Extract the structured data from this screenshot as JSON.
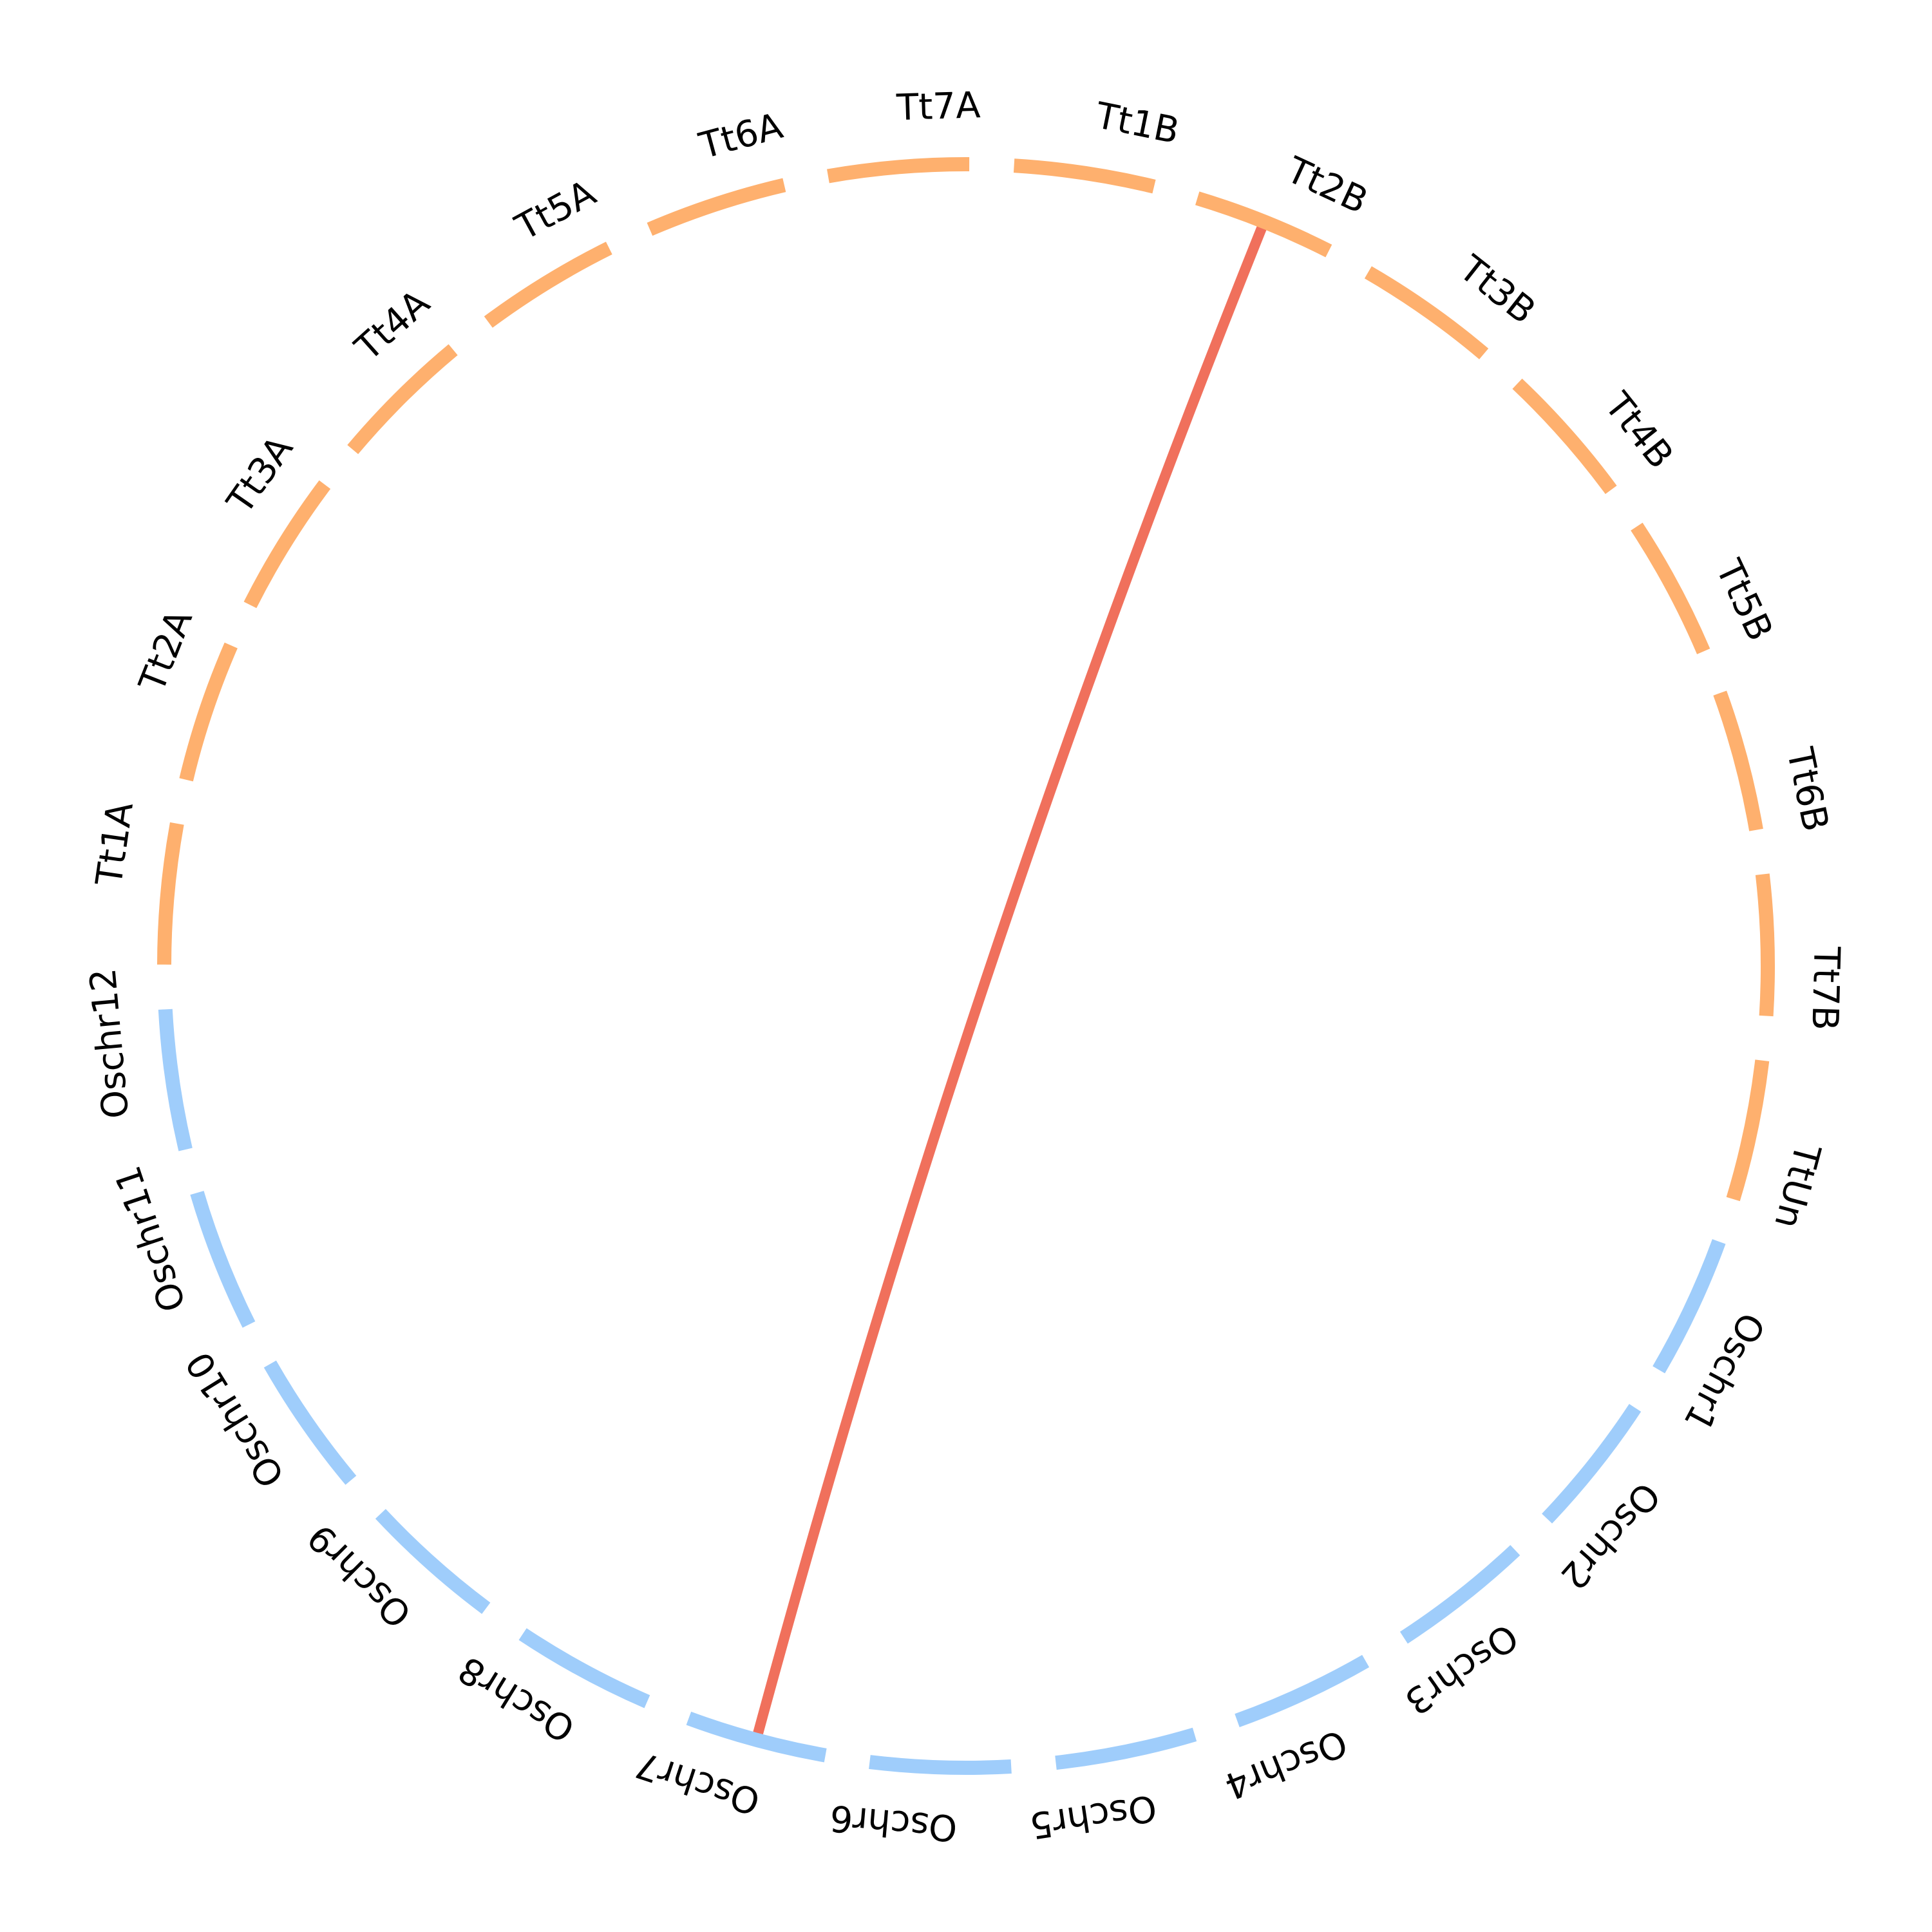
{
  "chart_data": {
    "type": "circos",
    "colors": {
      "Os": "#9fcdfb",
      "Tt": "#feb06e",
      "link": "#f0705c"
    },
    "chromosomes": [
      {
        "label": "Tt1A",
        "group": "Tt"
      },
      {
        "label": "Tt2A",
        "group": "Tt"
      },
      {
        "label": "Tt3A",
        "group": "Tt"
      },
      {
        "label": "Tt4A",
        "group": "Tt"
      },
      {
        "label": "Tt5A",
        "group": "Tt"
      },
      {
        "label": "Tt6A",
        "group": "Tt"
      },
      {
        "label": "Tt7A",
        "group": "Tt"
      },
      {
        "label": "Tt1B",
        "group": "Tt"
      },
      {
        "label": "Tt2B",
        "group": "Tt"
      },
      {
        "label": "Tt3B",
        "group": "Tt"
      },
      {
        "label": "Tt4B",
        "group": "Tt"
      },
      {
        "label": "Tt5B",
        "group": "Tt"
      },
      {
        "label": "Tt6B",
        "group": "Tt"
      },
      {
        "label": "Tt7B",
        "group": "Tt"
      },
      {
        "label": "TtUn",
        "group": "Tt"
      },
      {
        "label": "Oschr1",
        "group": "Os"
      },
      {
        "label": "Oschr2",
        "group": "Os"
      },
      {
        "label": "Oschr3",
        "group": "Os"
      },
      {
        "label": "Oschr4",
        "group": "Os"
      },
      {
        "label": "Oschr5",
        "group": "Os"
      },
      {
        "label": "Oschr6",
        "group": "Os"
      },
      {
        "label": "Oschr7",
        "group": "Os"
      },
      {
        "label": "Oschr8",
        "group": "Os"
      },
      {
        "label": "Oschr9",
        "group": "Os"
      },
      {
        "label": "Oschr10",
        "group": "Os"
      },
      {
        "label": "Oschr11",
        "group": "Os"
      },
      {
        "label": "Oschr12",
        "group": "Os"
      }
    ],
    "links": [
      {
        "from": "Oschr7",
        "to": "Tt2B"
      }
    ]
  }
}
